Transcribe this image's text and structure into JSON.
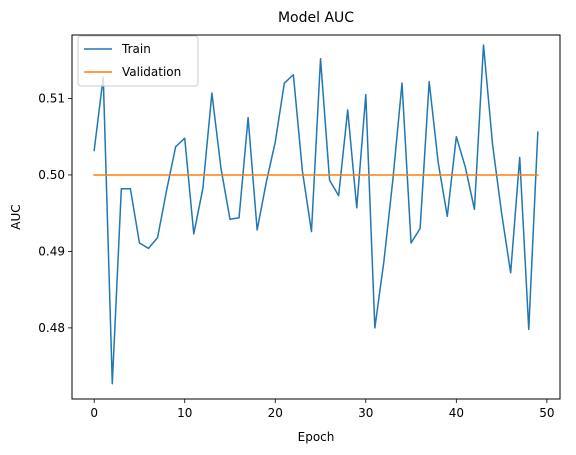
{
  "chart_data": {
    "type": "line",
    "title": "Model AUC",
    "xlabel": "Epoch",
    "ylabel": "AUC",
    "xlim": [
      -2.45,
      51.45
    ],
    "ylim": [
      0.4707,
      0.5183
    ],
    "xticks": [
      0,
      10,
      20,
      30,
      40,
      50
    ],
    "yticks": [
      0.48,
      0.49,
      0.5,
      0.51
    ],
    "ytick_labels": [
      "0.48",
      "0.49",
      "0.50",
      "0.51"
    ],
    "grid": false,
    "legend": {
      "position": "top-left",
      "entries": [
        "Train",
        "Validation"
      ]
    },
    "series": [
      {
        "name": "Train",
        "color": "#1f77b4",
        "x": [
          0,
          1,
          2,
          3,
          4,
          5,
          6,
          7,
          8,
          9,
          10,
          11,
          12,
          13,
          14,
          15,
          16,
          17,
          18,
          19,
          20,
          21,
          22,
          23,
          24,
          25,
          26,
          27,
          28,
          29,
          30,
          31,
          32,
          33,
          34,
          35,
          36,
          37,
          38,
          39,
          40,
          41,
          42,
          43,
          44,
          45,
          46,
          47,
          48,
          49
        ],
        "values": [
          0.5032,
          0.5128,
          0.4727,
          0.4982,
          0.4982,
          0.4911,
          0.4904,
          0.4918,
          0.498,
          0.5037,
          0.5048,
          0.4923,
          0.4982,
          0.5107,
          0.5009,
          0.4942,
          0.4944,
          0.5075,
          0.4928,
          0.499,
          0.5043,
          0.512,
          0.5131,
          0.5005,
          0.4926,
          0.5152,
          0.4993,
          0.4973,
          0.5085,
          0.4957,
          0.5105,
          0.48,
          0.4887,
          0.4995,
          0.512,
          0.4911,
          0.493,
          0.5122,
          0.5016,
          0.4946,
          0.505,
          0.501,
          0.4955,
          0.517,
          0.504,
          0.495,
          0.4872,
          0.5023,
          0.4798,
          0.5056
        ]
      },
      {
        "name": "Validation",
        "color": "#ff7f0e",
        "x": [
          0,
          1,
          2,
          3,
          4,
          5,
          6,
          7,
          8,
          9,
          10,
          11,
          12,
          13,
          14,
          15,
          16,
          17,
          18,
          19,
          20,
          21,
          22,
          23,
          24,
          25,
          26,
          27,
          28,
          29,
          30,
          31,
          32,
          33,
          34,
          35,
          36,
          37,
          38,
          39,
          40,
          41,
          42,
          43,
          44,
          45,
          46,
          47,
          48,
          49
        ],
        "values": [
          0.5,
          0.5,
          0.5,
          0.5,
          0.5,
          0.5,
          0.5,
          0.5,
          0.5,
          0.5,
          0.5,
          0.5,
          0.5,
          0.5,
          0.5,
          0.5,
          0.5,
          0.5,
          0.5,
          0.5,
          0.5,
          0.5,
          0.5,
          0.5,
          0.5,
          0.5,
          0.5,
          0.5,
          0.5,
          0.5,
          0.5,
          0.5,
          0.5,
          0.5,
          0.5,
          0.5,
          0.5,
          0.5,
          0.5,
          0.5,
          0.5,
          0.5,
          0.5,
          0.5,
          0.5,
          0.5,
          0.5,
          0.5,
          0.5,
          0.5
        ]
      }
    ]
  }
}
